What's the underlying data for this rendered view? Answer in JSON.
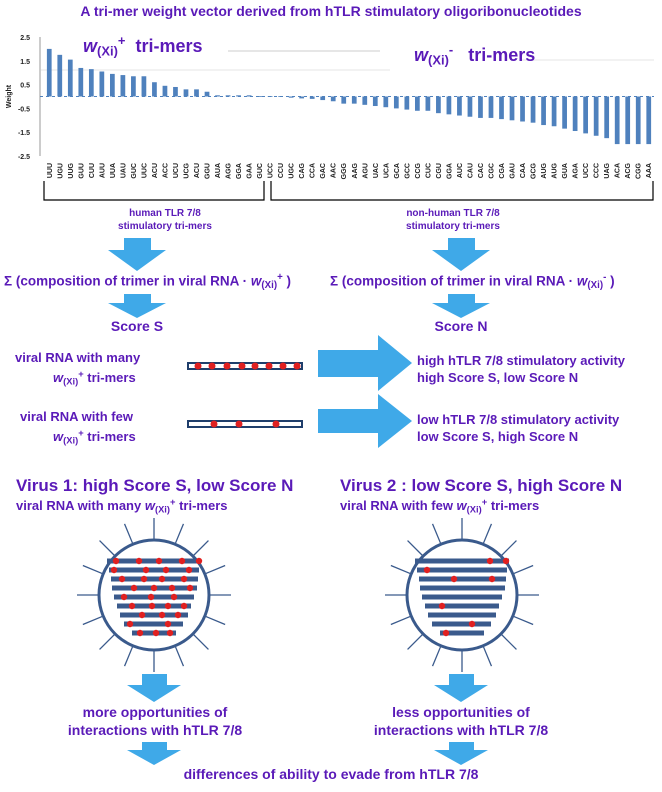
{
  "title": "A tri-mer weight vector derived from hTLR stimulatory oligoribonucleotides",
  "colors": {
    "text": "#5a1ab8",
    "bar": "#4f81bd",
    "arrow": "#3fa9e8",
    "strand": "#3a5a8c",
    "dot": "#e02020"
  },
  "chart_labels": {
    "pos_label_w": "w",
    "pos_label_sub": "(Xi)",
    "pos_label_sup": "+",
    "pos_label_rest": "tri-mers",
    "neg_label_w": "w",
    "neg_label_sub": "(Xi)",
    "neg_label_sup": "-",
    "neg_label_rest": "tri-mers"
  },
  "chart_data": {
    "type": "bar",
    "ylabel": "Weight",
    "ylim": [
      -2.5,
      2.5
    ],
    "yticks": [
      "2.5",
      "1.5",
      "0.5",
      "-0.5",
      "-1.5",
      "-2.5"
    ],
    "ytick_values": [
      2.5,
      1.5,
      0.5,
      -0.5,
      -1.5,
      -2.5
    ],
    "categories": [
      "UUU",
      "UGU",
      "UUG",
      "GUU",
      "CUU",
      "AUU",
      "UUA",
      "UAU",
      "GUC",
      "UUC",
      "ACU",
      "ACC",
      "UCU",
      "UCG",
      "ACU",
      "GGU",
      "AUA",
      "AGG",
      "GGA",
      "GAA",
      "GUC",
      "UCC",
      "CCU",
      "UGC",
      "CAG",
      "CCA",
      "GAC",
      "AAC",
      "GGG",
      "AAG",
      "AGU",
      "UAC",
      "UCA",
      "GCA",
      "GCC",
      "CCG",
      "CUC",
      "CGU",
      "GGA",
      "AUC",
      "CAU",
      "CAC",
      "CGC",
      "CGA",
      "GAU",
      "CAA",
      "GCG",
      "AUG",
      "AUG",
      "GUA",
      "AGA",
      "UCC",
      "CCC",
      "UAG",
      "ACA",
      "ACG",
      "CGG",
      "AAA"
    ],
    "values": [
      2.0,
      1.75,
      1.55,
      1.2,
      1.15,
      1.05,
      0.95,
      0.9,
      0.85,
      0.85,
      0.6,
      0.45,
      0.4,
      0.3,
      0.3,
      0.2,
      0.05,
      0.05,
      0.05,
      0.05,
      0.02,
      0.02,
      0.02,
      -0.05,
      -0.08,
      -0.1,
      -0.15,
      -0.2,
      -0.3,
      -0.3,
      -0.35,
      -0.4,
      -0.45,
      -0.5,
      -0.55,
      -0.6,
      -0.6,
      -0.7,
      -0.75,
      -0.8,
      -0.85,
      -0.9,
      -0.9,
      -0.95,
      -1.0,
      -1.05,
      -1.1,
      -1.2,
      -1.25,
      -1.35,
      -1.45,
      -1.55,
      -1.65,
      -1.75,
      -2.0,
      -2.0,
      -2.0,
      -2.0
    ]
  },
  "groups": {
    "human_l1": "human TLR 7/8",
    "human_l2": "stimulatory tri-mers",
    "nonhuman_l1": "non-human TLR 7/8",
    "nonhuman_l2": "stimulatory tri-mers"
  },
  "sums": {
    "sigma": "Σ",
    "left_pre": " (composition of trimer in viral RNA · ",
    "left_w": "w",
    "left_sub": "(Xi)",
    "left_sup": "+",
    "left_post": " )",
    "right_pre": " (composition of trimer in viral RNA · ",
    "right_w": "w",
    "right_sub": "(Xi)",
    "right_sup": "-",
    "right_post": " )"
  },
  "scores": {
    "left": "Score S",
    "right": "Score N"
  },
  "rows": {
    "many_l1": "viral RNA with many",
    "many_w": "w",
    "many_sub": "(Xi)",
    "many_sup": "+",
    "many_rest": " tri-mers",
    "few_l1": "viral RNA with few",
    "few_w": "w",
    "few_sub": "(Xi)",
    "few_sup": "+",
    "few_rest": " tri-mers",
    "res_high_1": "high hTLR 7/8 stimulatory activity",
    "res_high_2": "high Score S, low Score N",
    "res_low_1": "low hTLR 7/8 stimulatory activity",
    "res_low_2": "low Score S, high Score N"
  },
  "virus1": {
    "title": "Virus 1: high Score S, low Score N",
    "sub_pre": "viral RNA with many ",
    "sub_w": "w",
    "sub_sub": "(Xi)",
    "sub_sup": "+",
    "sub_post": " tri-mers"
  },
  "virus2": {
    "title": "Virus 2 : low Score S, high Score N",
    "sub_pre": "viral RNA with few ",
    "sub_w": "w",
    "sub_sub": "(Xi)",
    "sub_sup": "+",
    "sub_post": " tri-mers"
  },
  "outcomes": {
    "left_1": "more opportunities of",
    "left_2": "interactions with hTLR 7/8",
    "right_1": "less opportunities of",
    "right_2": "interactions with hTLR 7/8",
    "final": "differences of ability to evade from hTLR 7/8"
  }
}
